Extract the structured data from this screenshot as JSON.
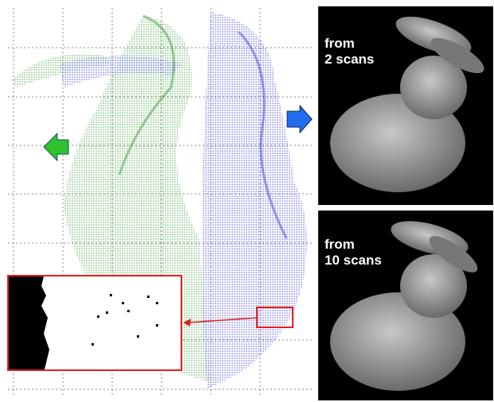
{
  "panels": [
    {
      "label_lines": [
        "from",
        "2 scans"
      ]
    },
    {
      "label_lines": [
        "from",
        "10 scans"
      ]
    }
  ]
}
